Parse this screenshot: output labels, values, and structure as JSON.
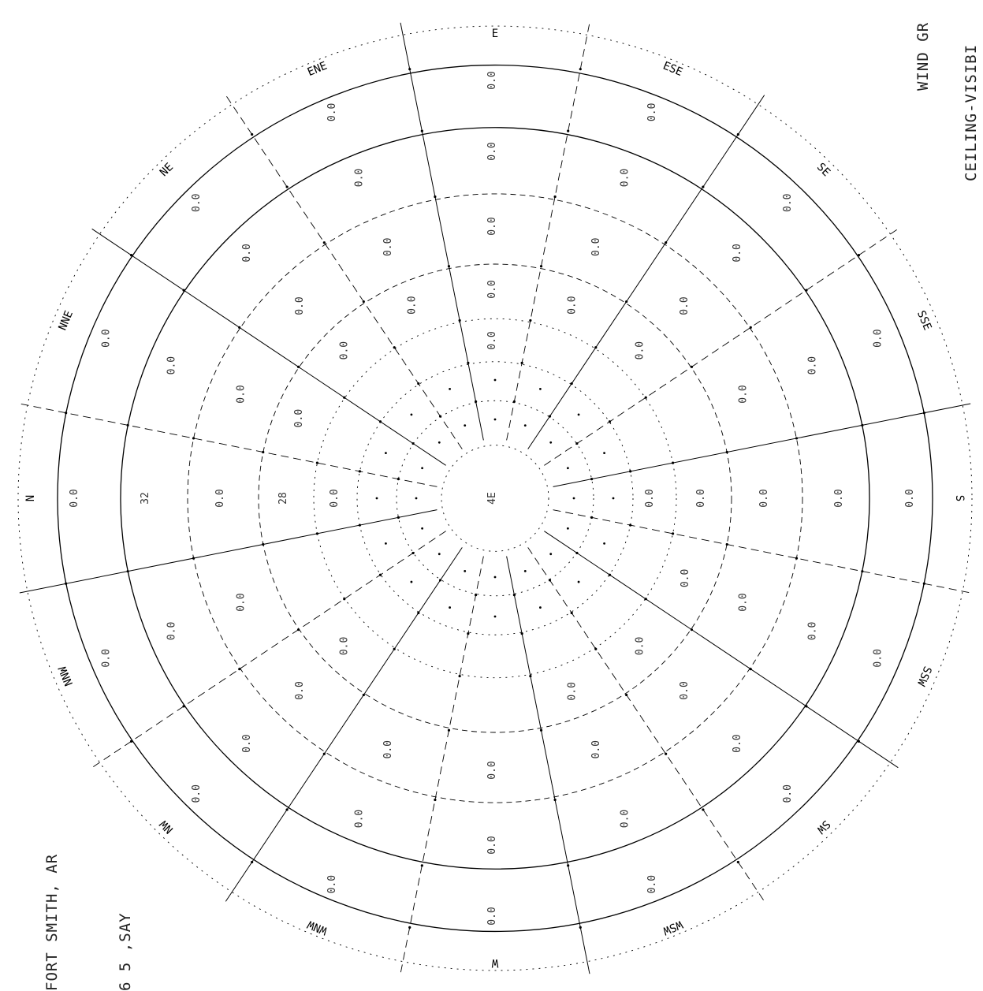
{
  "header": {
    "title_line1": "CEILING-VISIBI",
    "title_line2": "WIND GR",
    "station": "FORT SMITH, AR",
    "station_id": "6 5 ,SAY"
  },
  "chart_data": {
    "type": "windrose",
    "directions": [
      "N",
      "NNE",
      "NE",
      "ENE",
      "E",
      "ESE",
      "SE",
      "SSE",
      "S",
      "SSW",
      "SW",
      "WSW",
      "W",
      "WNW",
      "NW",
      "NNW"
    ],
    "direction_labels": [
      "N",
      "NNE",
      "NE",
      "ENE",
      "E",
      "ESE",
      "SE",
      "SSE",
      "S",
      "SSW",
      "SW",
      "WSW",
      "W",
      "WNW",
      "NW",
      "NNW"
    ],
    "speed_rings": [
      "0.0",
      "32",
      "28",
      "0.0",
      "0.0",
      "0.0"
    ],
    "center_label": "4E",
    "values": {
      "N": [
        "0.0",
        "32",
        "0.0",
        "28",
        "0.0"
      ],
      "NNE": [
        "0.0",
        "0.0",
        "0.0",
        "0.0"
      ],
      "NE": [
        "0.0",
        "0.0",
        "0.0",
        "0.0"
      ],
      "ENE": [
        "0.0",
        "0.0",
        "0.0",
        "0.0"
      ],
      "E": [
        "0.0",
        "0.0",
        "0.0",
        "0.0",
        "0.0"
      ],
      "ESE": [
        "0.0",
        "0.0",
        "0.0",
        "0.0"
      ],
      "SE": [
        "0.0",
        "0.0",
        "0.0",
        "0.0"
      ],
      "SSE": [
        "0.0",
        "0.0",
        "0.0"
      ],
      "S": [
        "0.0",
        "0.0",
        "0.0",
        "0.0",
        "0.0"
      ],
      "SSW": [
        "0.0",
        "0.0",
        "0.0",
        "0.0"
      ],
      "SW": [
        "0.0",
        "0.0",
        "0.0",
        "0.0"
      ],
      "WSW": [
        "0.0",
        "0.0",
        "0.0",
        "0.0"
      ],
      "W": [
        "0.0",
        "0.0",
        "0.0"
      ],
      "WNW": [
        "0.0",
        "0.0",
        "0.0"
      ],
      "NW": [
        "0.0",
        "0.0",
        "0.0",
        "0.0"
      ],
      "NNW": [
        "0.0",
        "0.0",
        "0.0"
      ]
    }
  }
}
